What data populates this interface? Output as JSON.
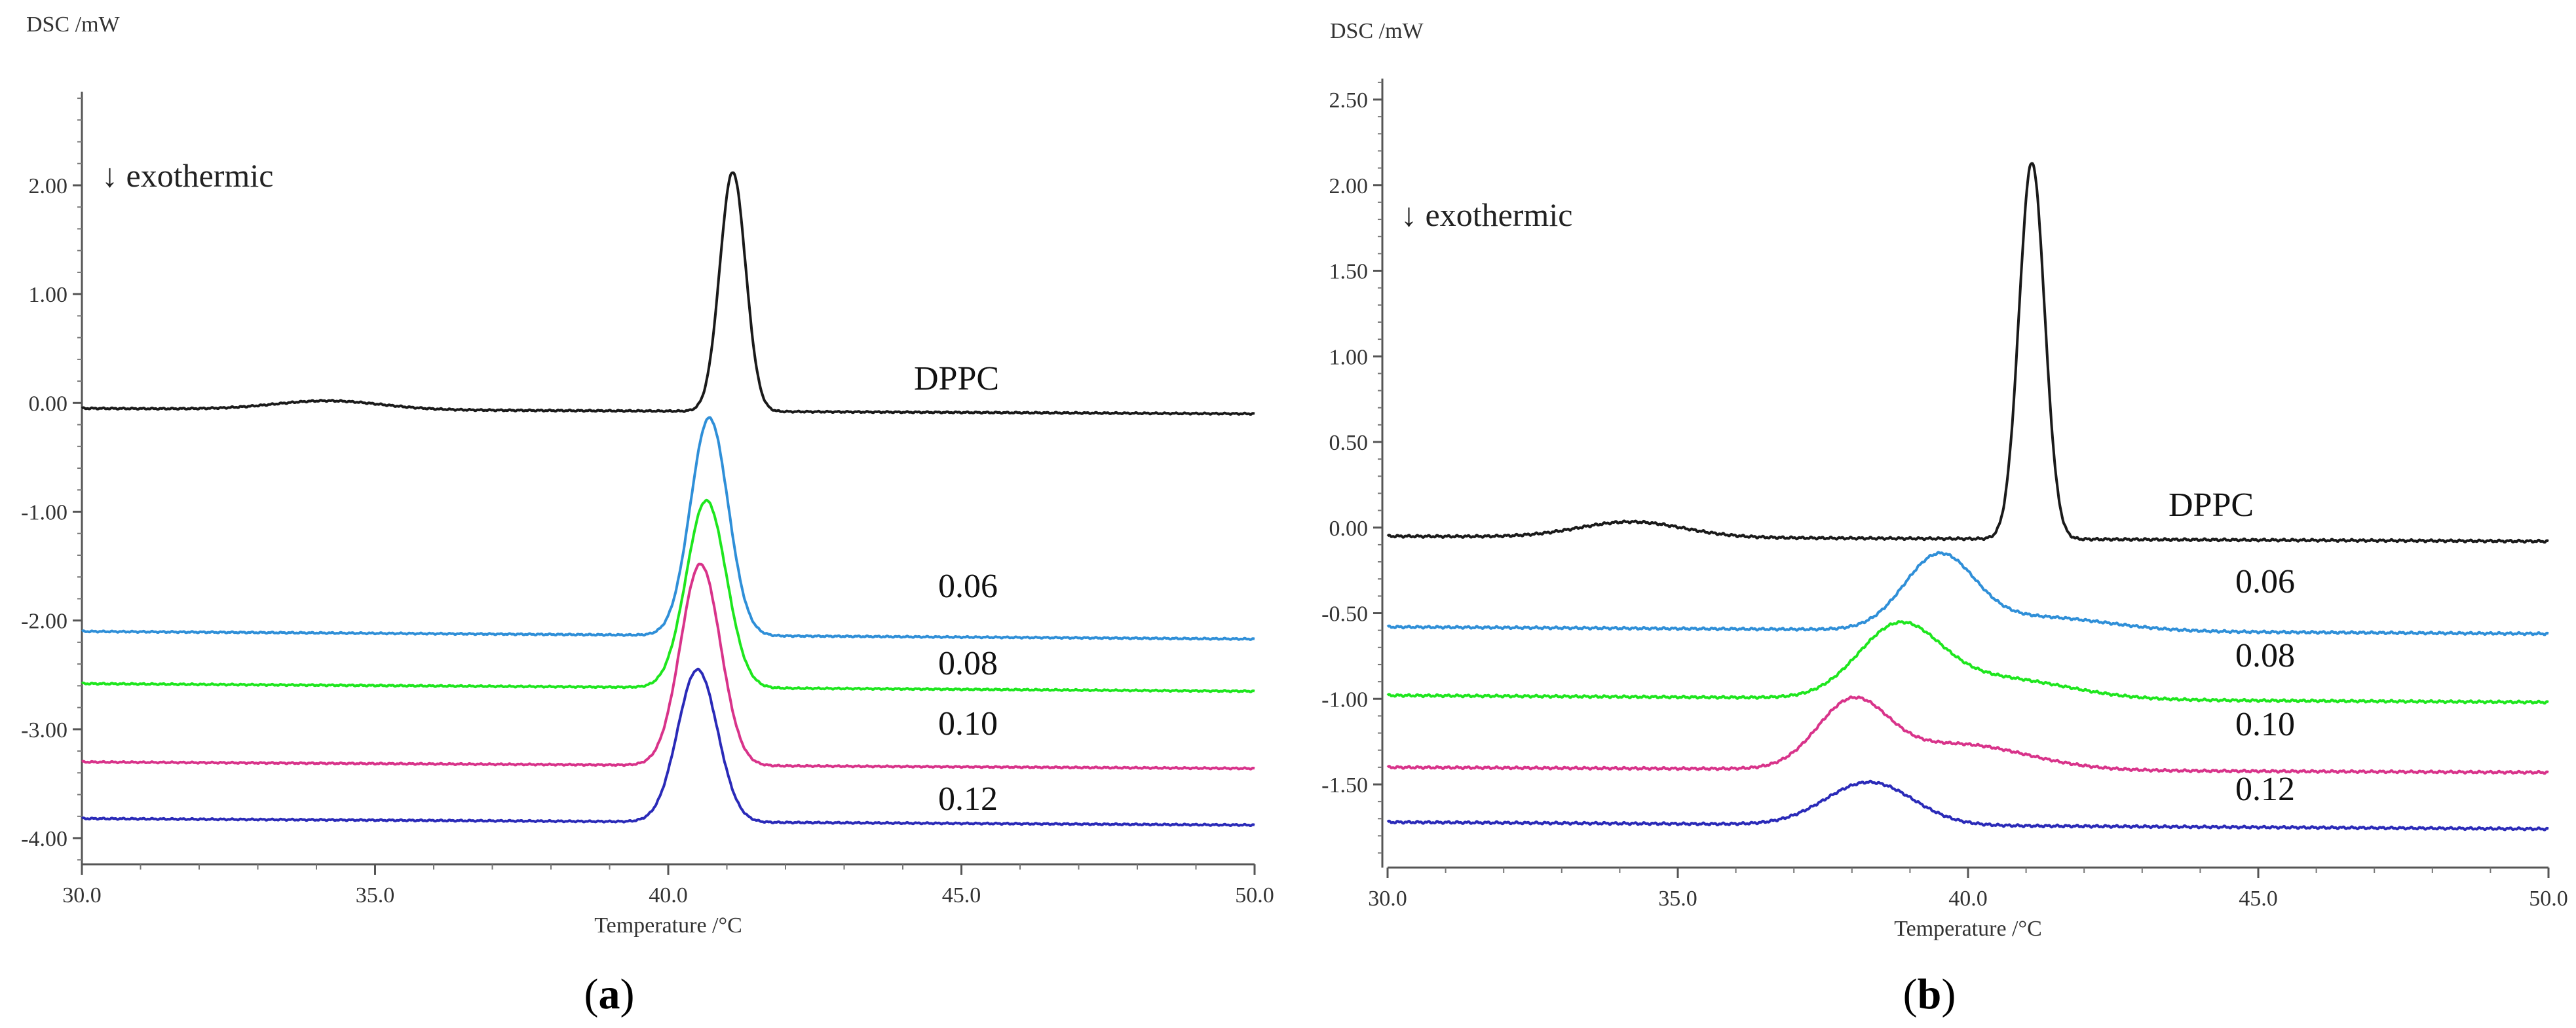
{
  "chart_data": [
    {
      "panel": "a",
      "type": "line",
      "panel_label_open": "(",
      "panel_label_letter": "a",
      "panel_label_close": ")",
      "ylabel": "DSC /mW",
      "xlabel": "Temperature /°C",
      "annotation": "↓ exothermic",
      "xlim": [
        30.0,
        50.0
      ],
      "ylim": [
        -4.2,
        2.9
      ],
      "xticks": [
        30.0,
        35.0,
        40.0,
        45.0,
        50.0
      ],
      "xtick_labels": [
        "30.0",
        "35.0",
        "40.0",
        "45.0",
        "50.0"
      ],
      "yticks": [
        2.0,
        1.0,
        0.0,
        -1.0,
        -2.0,
        -3.0,
        -4.0
      ],
      "ytick_labels": [
        "2.00",
        "1.00",
        "0.00",
        "-1.00",
        "-2.00",
        "-3.00",
        "-4.00"
      ],
      "series": [
        {
          "name": "DPPC",
          "color": "#1a1a1a",
          "baseline_start": -0.05,
          "baseline_end": -0.1,
          "peaks": [
            {
              "x": 34.2,
              "height": 0.08,
              "width": 0.9
            },
            {
              "x": 41.1,
              "height": 2.2,
              "width": 0.22
            }
          ]
        },
        {
          "name": "0.06",
          "color": "#2f8fd8",
          "baseline_start": -2.1,
          "baseline_end": -2.17,
          "peaks": [
            {
              "x": 40.7,
              "height": 2.0,
              "width": 0.32
            }
          ]
        },
        {
          "name": "0.08",
          "color": "#1ee61e",
          "baseline_start": -2.58,
          "baseline_end": -2.65,
          "peaks": [
            {
              "x": 40.65,
              "height": 1.72,
              "width": 0.34
            }
          ]
        },
        {
          "name": "0.10",
          "color": "#d8338a",
          "baseline_start": -3.3,
          "baseline_end": -3.36,
          "peaks": [
            {
              "x": 40.55,
              "height": 1.85,
              "width": 0.34
            }
          ]
        },
        {
          "name": "0.12",
          "color": "#2a2ab8",
          "baseline_start": -3.82,
          "baseline_end": -3.88,
          "peaks": [
            {
              "x": 40.5,
              "height": 1.4,
              "width": 0.34
            }
          ]
        }
      ]
    },
    {
      "panel": "b",
      "type": "line",
      "panel_label_open": "(",
      "panel_label_letter": "b",
      "panel_label_close": ")",
      "ylabel": "DSC /mW",
      "xlabel": "Temperature /°C",
      "annotation": "↓ exothermic",
      "xlim": [
        30.0,
        50.0
      ],
      "ylim": [
        -1.95,
        2.65
      ],
      "xticks": [
        30.0,
        35.0,
        40.0,
        45.0,
        50.0
      ],
      "xtick_labels": [
        "30.0",
        "35.0",
        "40.0",
        "45.0",
        "50.0"
      ],
      "yticks": [
        2.5,
        2.0,
        1.5,
        1.0,
        0.5,
        0.0,
        -0.5,
        -1.0,
        -1.5
      ],
      "ytick_labels": [
        "2.50",
        "2.00",
        "1.50",
        "1.00",
        "0.50",
        "0.00",
        "-0.50",
        "-1.00",
        "-1.50"
      ],
      "series": [
        {
          "name": "DPPC",
          "color": "#1a1a1a",
          "baseline_start": -0.05,
          "baseline_end": -0.08,
          "peaks": [
            {
              "x": 34.2,
              "height": 0.09,
              "width": 0.9
            },
            {
              "x": 41.1,
              "height": 2.2,
              "width": 0.22
            }
          ]
        },
        {
          "name": "0.06",
          "color": "#2f8fd8",
          "baseline_start": -0.58,
          "baseline_end": -0.62,
          "peaks": [
            {
              "x": 39.5,
              "height": 0.42,
              "width": 0.6
            },
            {
              "x": 41.2,
              "height": 0.08,
              "width": 1.2
            }
          ]
        },
        {
          "name": "0.08",
          "color": "#1ee61e",
          "baseline_start": -0.98,
          "baseline_end": -1.02,
          "peaks": [
            {
              "x": 38.8,
              "height": 0.4,
              "width": 0.7
            },
            {
              "x": 40.5,
              "height": 0.12,
              "width": 1.2
            }
          ]
        },
        {
          "name": "0.10",
          "color": "#d8338a",
          "baseline_start": -1.4,
          "baseline_end": -1.43,
          "peaks": [
            {
              "x": 38.0,
              "height": 0.37,
              "width": 0.6
            },
            {
              "x": 39.8,
              "height": 0.15,
              "width": 1.2
            }
          ]
        },
        {
          "name": "0.12",
          "color": "#2a2ab8",
          "baseline_start": -1.72,
          "baseline_end": -1.76,
          "peaks": [
            {
              "x": 38.3,
              "height": 0.25,
              "width": 0.75
            }
          ]
        }
      ]
    }
  ]
}
